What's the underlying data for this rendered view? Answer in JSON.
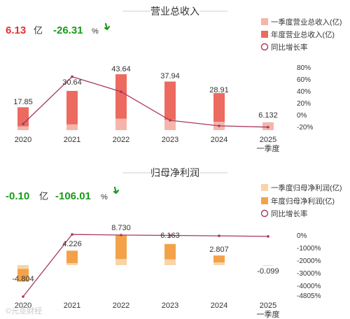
{
  "colors": {
    "rev_q1": "#f5b5ab",
    "rev_year": "#ec6a5f",
    "profit_q1": "#f8d4a8",
    "profit_year": "#f3a24a",
    "line": "#a8385a",
    "positive": "#e03030",
    "negative": "#1a9a1a"
  },
  "revenue": {
    "title": "营业总收入",
    "headline_value": "6.13",
    "headline_unit": "亿",
    "change": "-26.31",
    "change_unit": "%",
    "arrow_icon": "down-arrow-icon",
    "legend": [
      "一季度营业总收入(亿)",
      "年度营业总收入(亿)",
      "同比增长率"
    ]
  },
  "profit": {
    "title": "归母净利润",
    "headline_value": "-0.10",
    "headline_unit": "亿",
    "change": "-106.01",
    "change_unit": "%",
    "arrow_icon": "down-arrow-icon",
    "legend": [
      "一季度归母净利润(亿)",
      "年度归母净利润(亿)",
      "同比增长率"
    ]
  },
  "watermark": "©元亚财经",
  "chart_data": [
    {
      "type": "bar",
      "title": "营业总收入",
      "categories": [
        "2020",
        "2021",
        "2022",
        "2023",
        "2024",
        "2025"
      ],
      "category_sublabels": [
        "",
        "",
        "",
        "",
        "",
        "一季度"
      ],
      "series": [
        {
          "name": "一季度营业总收入(亿)",
          "values": [
            3.0,
            4.5,
            9.0,
            8.0,
            6.5,
            6.132
          ]
        },
        {
          "name": "年度营业总收入(亿)",
          "values": [
            17.85,
            30.64,
            43.64,
            37.94,
            28.91,
            null
          ]
        },
        {
          "name": "同比增长率",
          "values": [
            -20,
            71.6,
            42.4,
            -13.1,
            -23.8,
            -26.3
          ]
        }
      ],
      "data_labels": [
        "17.85",
        "30.64",
        "43.64",
        "37.94",
        "28.91",
        "6.132"
      ],
      "ylim": [
        0,
        50
      ],
      "y2_ticks": [
        "80%",
        "60%",
        "40%",
        "20%",
        "0%",
        "-20%"
      ],
      "y2lim": [
        -28,
        90
      ]
    },
    {
      "type": "bar",
      "title": "归母净利润",
      "categories": [
        "2020",
        "2021",
        "2022",
        "2023",
        "2024",
        "2025"
      ],
      "category_sublabels": [
        "",
        "",
        "",
        "",
        "",
        "一季度"
      ],
      "series": [
        {
          "name": "一季度归母净利润(亿)",
          "values": [
            -1.1,
            0.6,
            1.8,
            1.7,
            0.8,
            -0.099
          ]
        },
        {
          "name": "年度归母净利润(亿)",
          "values": [
            -4.804,
            4.226,
            8.73,
            6.163,
            2.807,
            null
          ]
        },
        {
          "name": "同比增长率",
          "values": [
            -4805,
            50,
            0,
            -30,
            -60,
            -106
          ]
        }
      ],
      "data_labels": [
        "-4.804",
        "4.226",
        "8.730",
        "6.163",
        "2.807",
        "-0.099"
      ],
      "ylim": [
        -5.5,
        9.5
      ],
      "y2_ticks": [
        "0%",
        "-1000%",
        "-2000%",
        "-3000%",
        "-4000%",
        "-4805%"
      ],
      "y2lim": [
        -4805,
        0
      ]
    }
  ]
}
